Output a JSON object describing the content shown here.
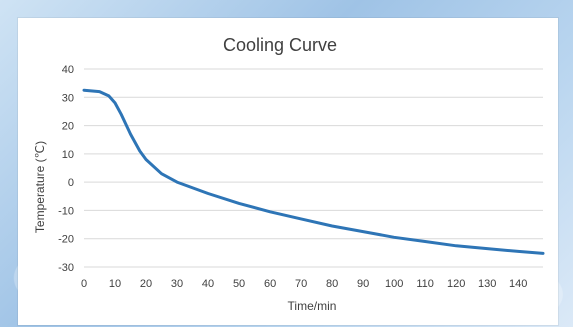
{
  "chart_data": {
    "type": "line",
    "title": "Cooling Curve",
    "xlabel": "Time/min",
    "ylabel": "Temperature  (℃)",
    "xlim": [
      0,
      148
    ],
    "ylim": [
      -30,
      40
    ],
    "x_ticks": [
      0,
      10,
      20,
      30,
      40,
      50,
      60,
      70,
      80,
      90,
      100,
      110,
      120,
      130,
      140
    ],
    "y_ticks": [
      40,
      30,
      20,
      10,
      0,
      -10,
      -20,
      -30
    ],
    "grid": true,
    "legend": "none",
    "series": [
      {
        "color": "#2e75b6",
        "points": [
          [
            0,
            32.5
          ],
          [
            5,
            32
          ],
          [
            8,
            30.5
          ],
          [
            10,
            28
          ],
          [
            12,
            24
          ],
          [
            15,
            17
          ],
          [
            18,
            11
          ],
          [
            20,
            8
          ],
          [
            25,
            3
          ],
          [
            30,
            0
          ],
          [
            40,
            -4
          ],
          [
            50,
            -7.5
          ],
          [
            60,
            -10.5
          ],
          [
            70,
            -13
          ],
          [
            80,
            -15.5
          ],
          [
            90,
            -17.5
          ],
          [
            100,
            -19.5
          ],
          [
            110,
            -21
          ],
          [
            120,
            -22.5
          ],
          [
            130,
            -23.5
          ],
          [
            140,
            -24.5
          ],
          [
            148,
            -25.2
          ]
        ]
      }
    ]
  }
}
